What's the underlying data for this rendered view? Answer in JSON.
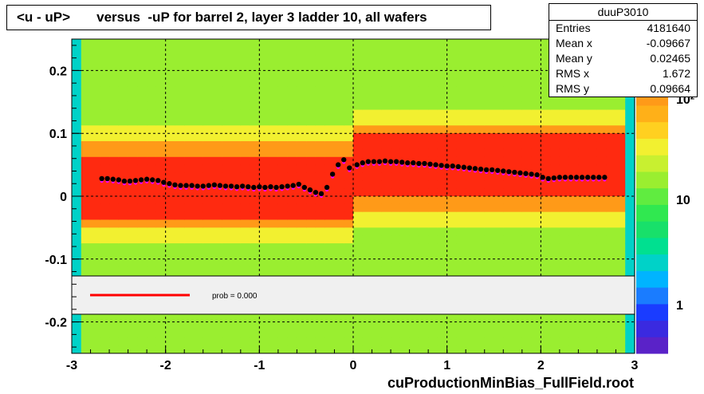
{
  "title": "<u - uP>       versus  -uP for barrel 2, layer 3 ladder 10, all wafers",
  "footer": "cuProductionMinBias_FullField.root",
  "stats": {
    "name": "duuP3010",
    "rows": [
      {
        "label": "Entries",
        "value": "4181640"
      },
      {
        "label": "Mean x",
        "value": "-0.09667"
      },
      {
        "label": "Mean y",
        "value": "0.02465"
      },
      {
        "label": "RMS x",
        "value": "1.672"
      },
      {
        "label": "RMS y",
        "value": "0.09664"
      }
    ]
  },
  "legend": {
    "text": "prob = 0.000"
  },
  "colors": {
    "fit_line": "#ff0000",
    "profile_points": "#000000",
    "magenta_points": "#ff00ff"
  },
  "chart_data": {
    "type": "heatmap",
    "xlim": [
      -3,
      3
    ],
    "ylim": [
      -0.25,
      0.25
    ],
    "x_ticks": [
      "-3",
      "-2",
      "-1",
      "0",
      "1",
      "2",
      "3"
    ],
    "y_ticks": [
      "0.2",
      "0.1",
      "0",
      "-0.1",
      "-0.2"
    ],
    "z_ticks": [
      "1",
      "10",
      "10²"
    ],
    "grid": true,
    "profile": {
      "x": [
        -2.68,
        -2.62,
        -2.56,
        -2.5,
        -2.44,
        -2.38,
        -2.32,
        -2.26,
        -2.2,
        -2.14,
        -2.08,
        -2.02,
        -1.96,
        -1.9,
        -1.84,
        -1.78,
        -1.72,
        -1.66,
        -1.6,
        -1.54,
        -1.48,
        -1.42,
        -1.36,
        -1.3,
        -1.24,
        -1.18,
        -1.12,
        -1.06,
        -1.0,
        -0.94,
        -0.88,
        -0.82,
        -0.76,
        -0.7,
        -0.64,
        -0.58,
        -0.52,
        -0.46,
        -0.4,
        -0.34,
        -0.28,
        -0.22,
        -0.16,
        -0.1,
        -0.04,
        0.04,
        0.1,
        0.16,
        0.22,
        0.28,
        0.34,
        0.4,
        0.46,
        0.52,
        0.58,
        0.64,
        0.7,
        0.76,
        0.82,
        0.88,
        0.94,
        1.0,
        1.06,
        1.12,
        1.18,
        1.24,
        1.3,
        1.36,
        1.42,
        1.48,
        1.54,
        1.6,
        1.66,
        1.72,
        1.78,
        1.84,
        1.9,
        1.96,
        2.02,
        2.08,
        2.14,
        2.2,
        2.26,
        2.32,
        2.38,
        2.44,
        2.5,
        2.56,
        2.62,
        2.68
      ],
      "y": [
        0.028,
        0.028,
        0.027,
        0.026,
        0.024,
        0.024,
        0.025,
        0.026,
        0.027,
        0.026,
        0.025,
        0.022,
        0.02,
        0.018,
        0.017,
        0.017,
        0.017,
        0.016,
        0.016,
        0.017,
        0.018,
        0.017,
        0.016,
        0.016,
        0.015,
        0.016,
        0.015,
        0.014,
        0.015,
        0.014,
        0.015,
        0.014,
        0.015,
        0.016,
        0.017,
        0.019,
        0.014,
        0.01,
        0.006,
        0.004,
        0.014,
        0.035,
        0.05,
        0.058,
        0.045,
        0.05,
        0.053,
        0.055,
        0.055,
        0.055,
        0.056,
        0.055,
        0.055,
        0.054,
        0.053,
        0.053,
        0.052,
        0.052,
        0.051,
        0.05,
        0.049,
        0.048,
        0.048,
        0.047,
        0.046,
        0.045,
        0.044,
        0.043,
        0.042,
        0.042,
        0.041,
        0.04,
        0.039,
        0.038,
        0.037,
        0.036,
        0.035,
        0.034,
        0.03,
        0.028,
        0.029,
        0.03,
        0.03,
        0.03,
        0.03,
        0.03,
        0.03,
        0.03,
        0.03,
        0.03
      ]
    }
  }
}
